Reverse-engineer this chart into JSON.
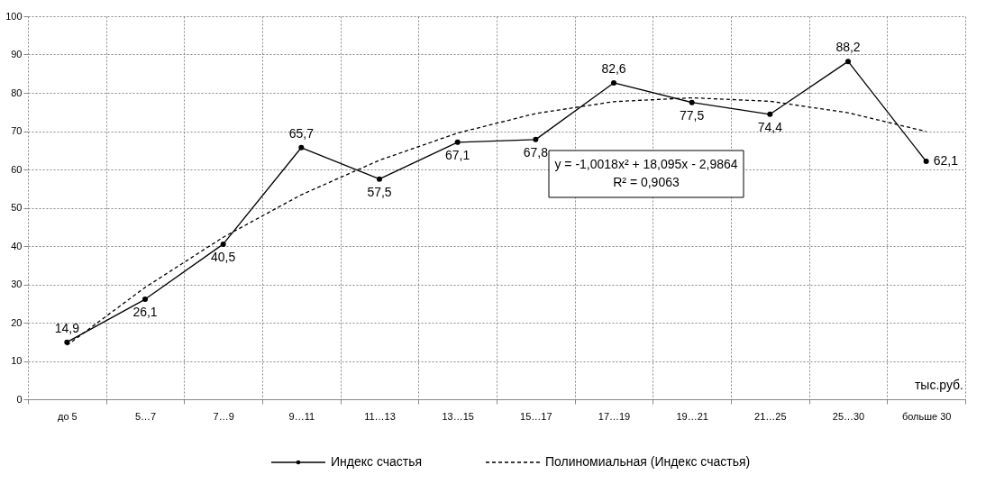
{
  "chart_data": {
    "type": "line",
    "xlabel": "тыс.руб.",
    "categories": [
      "до 5",
      "5…7",
      "7…9",
      "9…11",
      "11…13",
      "13…15",
      "15…17",
      "17…19",
      "19…21",
      "21…25",
      "25…30",
      "больше 30"
    ],
    "series": [
      {
        "name": "Индекс счастья",
        "color": "#000000",
        "marker": "circle",
        "line_style": "solid",
        "values": [
          14.9,
          26.1,
          40.5,
          65.7,
          57.5,
          67.1,
          67.8,
          82.6,
          77.5,
          74.4,
          88.2,
          62.1
        ],
        "value_labels": [
          "14,9",
          "26,1",
          "40,5",
          "65,7",
          "57,5",
          "67,1",
          "67,8",
          "82,6",
          "77,5",
          "74,4",
          "88,2",
          "62,1"
        ]
      },
      {
        "name": "Полиномиальная (Индекс счастья)",
        "color": "#000000",
        "marker": "none",
        "line_style": "dashed",
        "values": [
          14.1,
          29.2,
          42.3,
          53.4,
          62.4,
          69.5,
          74.6,
          77.7,
          78.7,
          77.8,
          74.8,
          69.9
        ]
      }
    ],
    "ylim": [
      0,
      100
    ],
    "yticks": [
      0,
      10,
      20,
      30,
      40,
      50,
      60,
      70,
      80,
      90,
      100
    ],
    "grid": true,
    "legend": "bottom",
    "annotations": [
      "y = -1,0018x² + 18,095x - 2,9864",
      "R² = 0,9063"
    ]
  }
}
